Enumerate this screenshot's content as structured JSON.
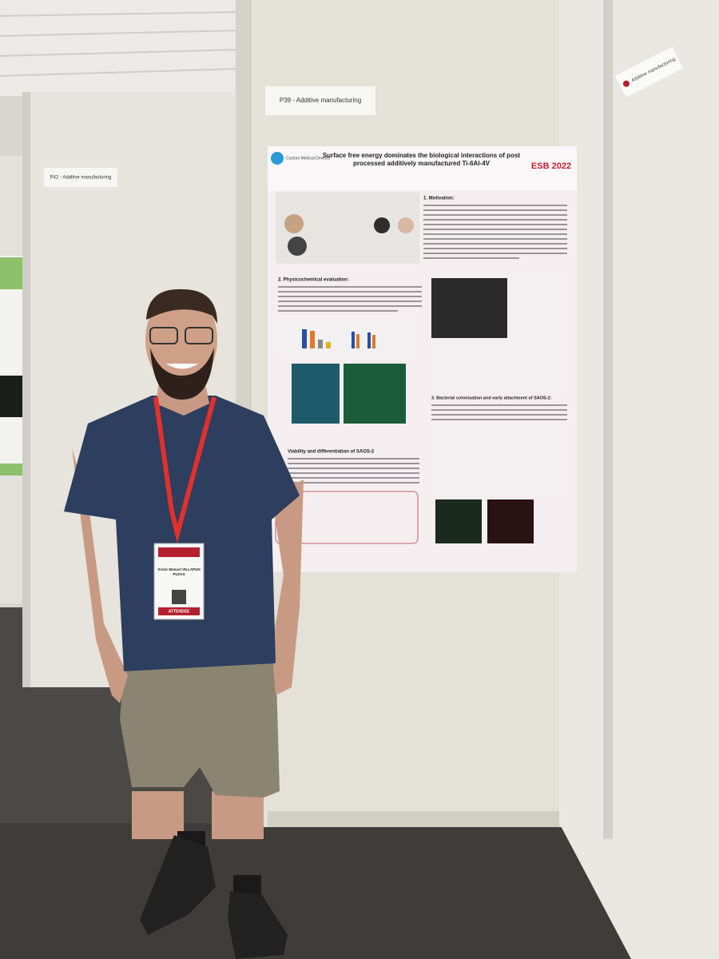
{
  "signs": {
    "main": "P39 - Additive manufacturing",
    "left": "P42 - Additive manufacturing",
    "right": "Additive manufacturing"
  },
  "poster": {
    "logo": "Custom Medical Devices",
    "title": "Surface free energy dominates the biological interactions of post processed additively manufactured Ti-6Al-4V",
    "conference": "ESB 2022",
    "sections": [
      "1. Motivation:",
      "2. Physicochemical evaluation:",
      "3. Bacterial colonisation and early attachment of SAOS-2:",
      "Viability and differentiation of SAOS-2"
    ]
  },
  "badge": {
    "name": "Victor Manuel VILLAPUN PUZAS",
    "role": "ATTENDEE"
  }
}
